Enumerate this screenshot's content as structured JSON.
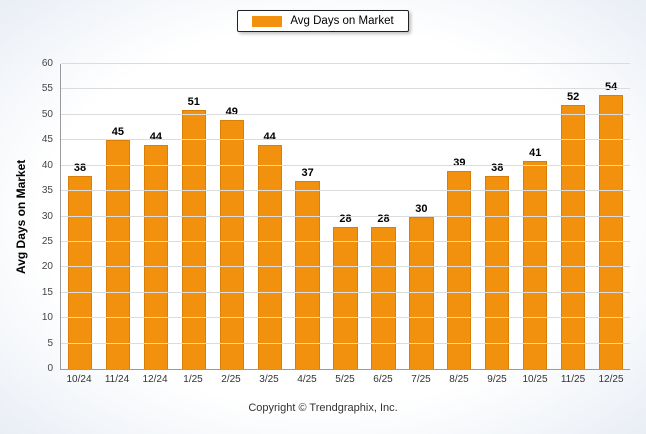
{
  "legend": {
    "label": "Avg Days on Market",
    "swatch_color": "#F2910D"
  },
  "footer": {
    "copyright": "Copyright © Trendgraphix, Inc."
  },
  "chart_data": {
    "type": "bar",
    "categories": [
      "10/24",
      "11/24",
      "12/24",
      "1/25",
      "2/25",
      "3/25",
      "4/25",
      "5/25",
      "6/25",
      "7/25",
      "8/25",
      "9/25",
      "10/25",
      "11/25",
      "12/25"
    ],
    "values": [
      38,
      45,
      44,
      51,
      49,
      44,
      37,
      28,
      28,
      30,
      39,
      38,
      41,
      52,
      54
    ],
    "xlabel": "",
    "ylabel": "Avg Days on Market",
    "ylim": [
      0,
      60
    ],
    "ytick_step": 5,
    "grid": true,
    "legend_position": "top-center",
    "bar_color": "#F2910D",
    "bar_border_color": "#D97E06",
    "value_labels": true
  }
}
